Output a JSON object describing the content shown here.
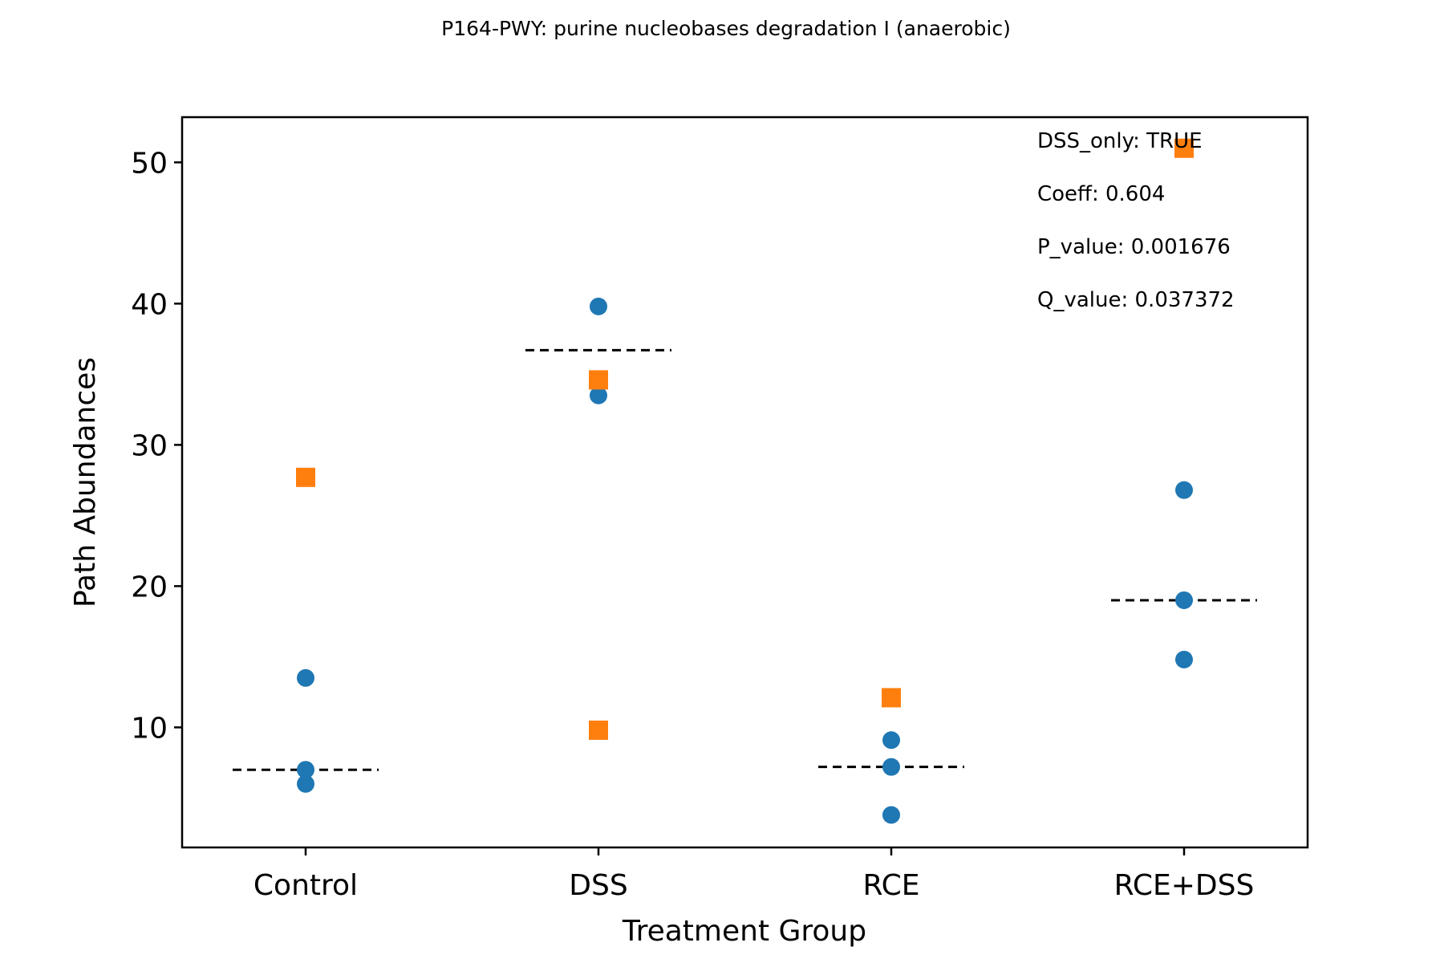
{
  "chart_data": {
    "type": "scatter",
    "title": "P164-PWY: purine nucleobases degradation I (anaerobic)",
    "xlabel": "Treatment Group",
    "ylabel": "Path Abundances",
    "categories": [
      "Control",
      "DSS",
      "RCE",
      "RCE+DSS"
    ],
    "ylim": [
      1.5,
      53.2
    ],
    "yticks": [
      10,
      20,
      30,
      40,
      50
    ],
    "grid": false,
    "colors": {
      "circle": "#1f77b4",
      "square": "#ff7f0e",
      "median": "#000000"
    },
    "series": [
      {
        "marker": "circle",
        "points": [
          {
            "x": "Control",
            "y": 13.5
          },
          {
            "x": "Control",
            "y": 7.0
          },
          {
            "x": "Control",
            "y": 6.0
          },
          {
            "x": "DSS",
            "y": 39.8
          },
          {
            "x": "DSS",
            "y": 33.5
          },
          {
            "x": "RCE",
            "y": 9.1
          },
          {
            "x": "RCE",
            "y": 7.2
          },
          {
            "x": "RCE",
            "y": 3.8
          },
          {
            "x": "RCE+DSS",
            "y": 26.8
          },
          {
            "x": "RCE+DSS",
            "y": 19.0
          },
          {
            "x": "RCE+DSS",
            "y": 14.8
          }
        ]
      },
      {
        "marker": "square",
        "points": [
          {
            "x": "Control",
            "y": 27.7
          },
          {
            "x": "DSS",
            "y": 34.6
          },
          {
            "x": "DSS",
            "y": 9.8
          },
          {
            "x": "RCE",
            "y": 12.1
          },
          {
            "x": "RCE+DSS",
            "y": 51.0
          }
        ]
      }
    ],
    "medians": [
      {
        "x": "Control",
        "y": 7.0
      },
      {
        "x": "DSS",
        "y": 36.7
      },
      {
        "x": "RCE",
        "y": 7.2
      },
      {
        "x": "RCE+DSS",
        "y": 19.0
      }
    ],
    "annotations": [
      "DSS_only: TRUE",
      "Coeff: 0.604",
      "P_value: 0.001676",
      "Q_value: 0.037372"
    ]
  }
}
